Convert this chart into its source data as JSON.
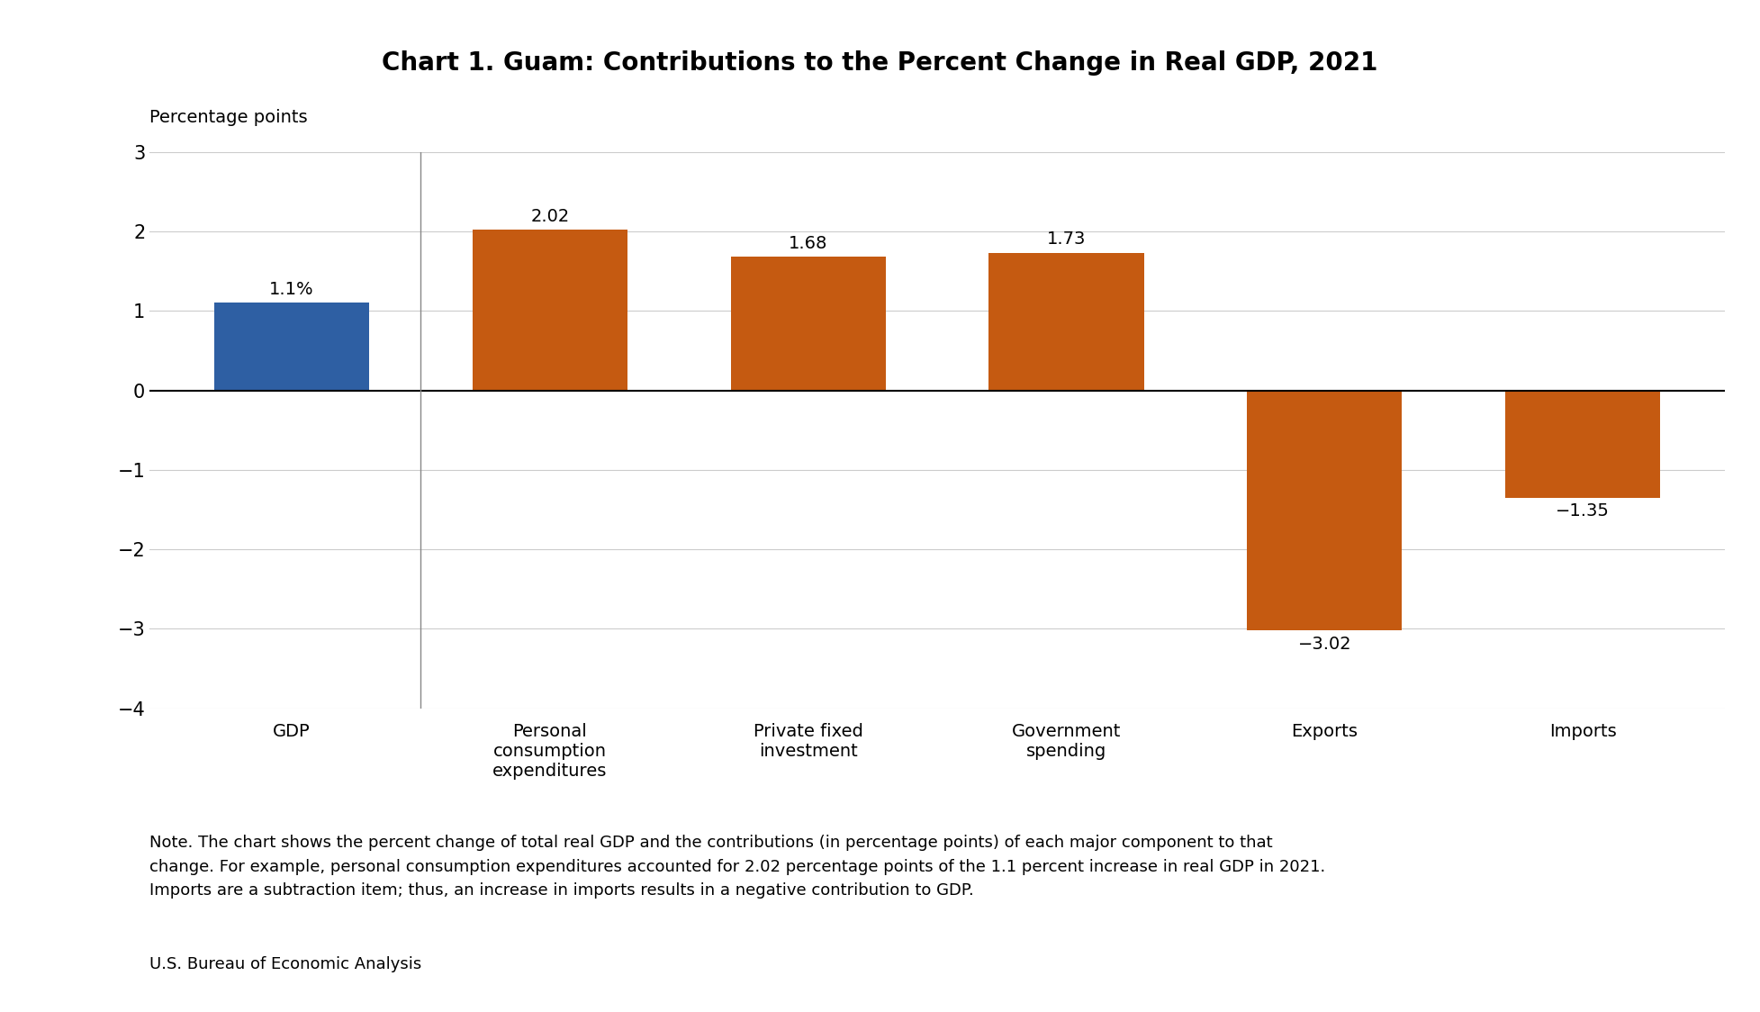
{
  "title": "Chart 1. Guam: Contributions to the Percent Change in Real GDP, 2021",
  "ylabel": "Percentage points",
  "categories": [
    "GDP",
    "Personal\nconsumption\nexpenditures",
    "Private fixed\ninvestment",
    "Government\nspending",
    "Exports",
    "Imports"
  ],
  "values": [
    1.1,
    2.02,
    1.68,
    1.73,
    -3.02,
    -1.35
  ],
  "bar_colors": [
    "#2E5FA3",
    "#C55A11",
    "#C55A11",
    "#C55A11",
    "#C55A11",
    "#C55A11"
  ],
  "value_labels": [
    "1.1%",
    "2.02",
    "1.68",
    "1.73",
    "−3.02",
    "−1.35"
  ],
  "ylim": [
    -4,
    3
  ],
  "yticks": [
    -4,
    -3,
    -2,
    -1,
    0,
    1,
    2,
    3
  ],
  "ytick_labels": [
    "−4",
    "−3",
    "−2",
    "−1",
    "0",
    "1",
    "2",
    "3"
  ],
  "title_fontsize": 20,
  "ylabel_fontsize": 14,
  "tick_fontsize": 15,
  "xticklabel_fontsize": 14,
  "bar_label_fontsize": 14,
  "note_fontsize": 13,
  "source_fontsize": 13,
  "note_text": "Note. The chart shows the percent change of total real GDP and the contributions (in percentage points) of each major component to that\nchange. For example, personal consumption expenditures accounted for 2.02 percentage points of the 1.1 percent increase in real GDP in 2021.\nImports are a subtraction item; thus, an increase in imports results in a negative contribution to GDP.",
  "source_text": "U.S. Bureau of Economic Analysis",
  "background_color": "#FFFFFF",
  "grid_color": "#CCCCCC",
  "bar_width": 0.6
}
